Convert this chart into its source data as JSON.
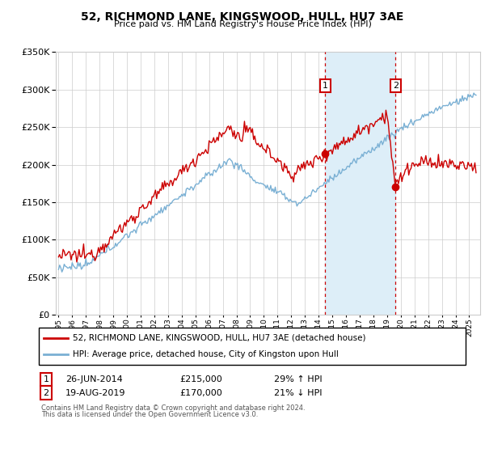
{
  "title": "52, RICHMOND LANE, KINGSWOOD, HULL, HU7 3AE",
  "subtitle": "Price paid vs. HM Land Registry's House Price Index (HPI)",
  "legend_line1": "52, RICHMOND LANE, KINGSWOOD, HULL, HU7 3AE (detached house)",
  "legend_line2": "HPI: Average price, detached house, City of Kingston upon Hull",
  "transaction1_label": "1",
  "transaction1_date": "26-JUN-2014",
  "transaction1_price": "£215,000",
  "transaction1_pct": "29% ↑ HPI",
  "transaction2_label": "2",
  "transaction2_date": "19-AUG-2019",
  "transaction2_price": "£170,000",
  "transaction2_pct": "21% ↓ HPI",
  "footnote1": "Contains HM Land Registry data © Crown copyright and database right 2024.",
  "footnote2": "This data is licensed under the Open Government Licence v3.0.",
  "transaction1_year": 2014.48,
  "transaction2_year": 2019.62,
  "transaction1_price_val": 215000,
  "transaction2_price_val": 170000,
  "red_color": "#cc0000",
  "blue_color": "#7ab0d4",
  "shade_color": "#ddeef8",
  "grid_color": "#cccccc",
  "bg_color": "#ffffff",
  "ylim_min": 0,
  "ylim_max": 350000,
  "xlim_min": 1994.8,
  "xlim_max": 2025.8
}
